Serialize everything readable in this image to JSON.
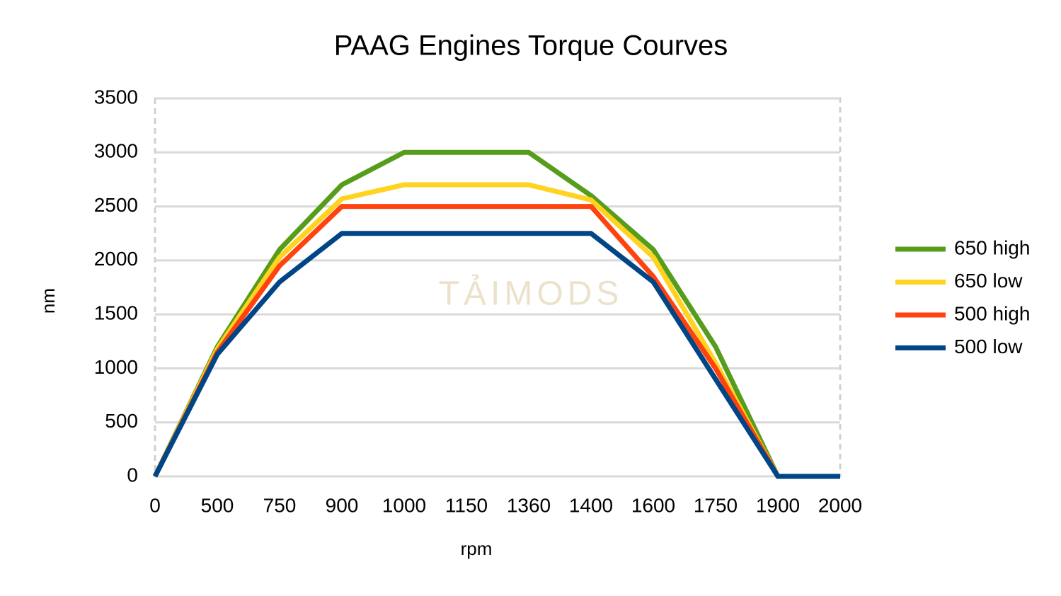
{
  "chart_data": {
    "type": "line",
    "title": "PAAG Engines Torque Courves",
    "x_label": "rpm",
    "y_label": "nm",
    "categories": [
      "0",
      "500",
      "750",
      "900",
      "1000",
      "1150",
      "1360",
      "1400",
      "1600",
      "1750",
      "1900",
      "2000"
    ],
    "series": [
      {
        "name": "650 high",
        "color": "#579d1c",
        "values": [
          0,
          1200,
          2100,
          2700,
          3000,
          3000,
          3000,
          2600,
          2100,
          1200,
          0,
          0
        ]
      },
      {
        "name": "650 low",
        "color": "#ffd320",
        "values": [
          0,
          1180,
          2030,
          2570,
          2700,
          2700,
          2700,
          2560,
          2030,
          1050,
          0,
          0
        ]
      },
      {
        "name": "500 high",
        "color": "#ff420e",
        "values": [
          0,
          1150,
          1950,
          2500,
          2500,
          2500,
          2500,
          2500,
          1850,
          1000,
          0,
          0
        ]
      },
      {
        "name": "500 low",
        "color": "#004586",
        "values": [
          0,
          1130,
          1800,
          2250,
          2250,
          2250,
          2250,
          2250,
          1800,
          900,
          0,
          0
        ]
      }
    ],
    "ylim": [
      0,
      3500
    ],
    "yticks": [
      0,
      500,
      1000,
      1500,
      2000,
      2500,
      3000,
      3500
    ],
    "grid": true,
    "legend": "right",
    "watermark": "TẢIMODS"
  }
}
